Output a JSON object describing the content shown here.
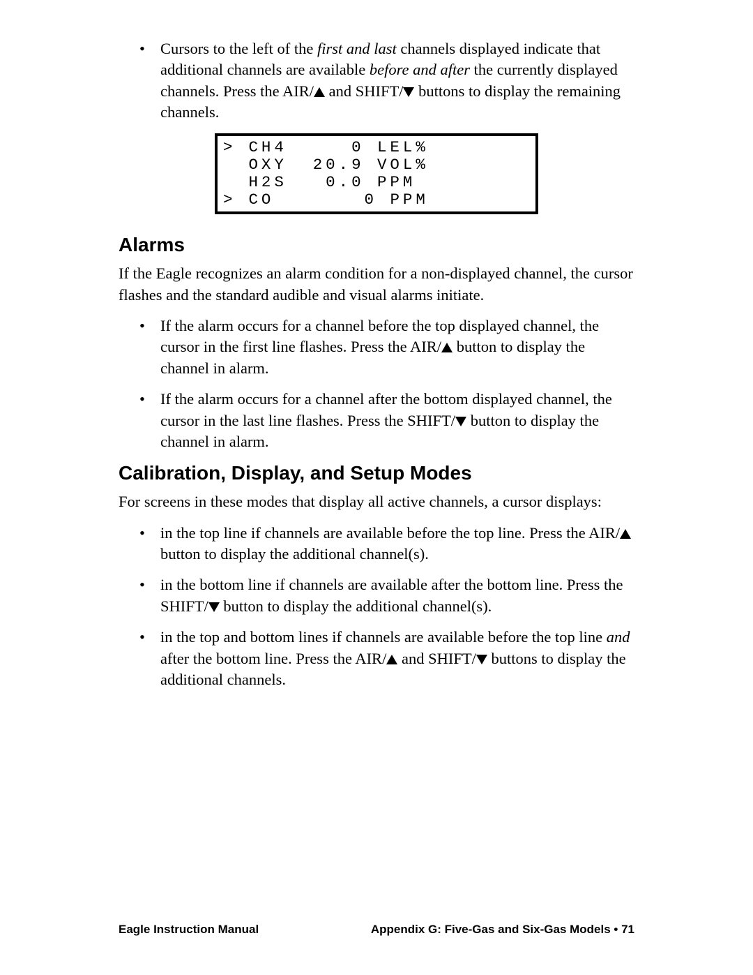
{
  "intro_bullet": {
    "pre1": "Cursors to the left of the ",
    "ital1": "first and last",
    "mid1": " channels displayed indicate that additional channels are available ",
    "ital2": "before and after",
    "mid2": " the currently displayed channels. Press the AIR/",
    "mid3": " and SHIFT/",
    "mid4": " buttons to display the remaining channels."
  },
  "display": {
    "rows": [
      {
        "cursor": ">",
        "gas": "CH4",
        "value": "   0",
        "unit": "LEL%"
      },
      {
        "cursor": " ",
        "gas": "OXY",
        "value": "20.9",
        "unit": "VOL%"
      },
      {
        "cursor": " ",
        "gas": "H2S",
        "value": " 0.0",
        "unit": "PPM"
      },
      {
        "cursor": ">",
        "gas": "CO ",
        "value": "   0",
        "unit": "PPM"
      }
    ]
  },
  "alarms": {
    "heading": "Alarms",
    "intro": "If the Eagle recognizes an alarm condition for a non-displayed channel, the cursor flashes and the standard audible and visual alarms initiate.",
    "b1a": "If the alarm occurs for a channel before the top displayed channel, the cursor in the first line flashes. Press the AIR/",
    "b1b": " button to display the channel in alarm.",
    "b2a": "If the alarm occurs for a channel after the bottom displayed channel, the cursor in the last line flashes. Press the SHIFT/",
    "b2b": " button to display the channel in alarm."
  },
  "calib": {
    "heading": "Calibration, Display, and Setup Modes",
    "intro": "For screens in these modes that display all active channels, a cursor displays:",
    "b1a": "in the top line if channels are available before the top line. Press the AIR/",
    "b1b": " button to display the additional channel(s).",
    "b2a": "in the bottom line if channels are available after the bottom line. Press the SHIFT/",
    "b2b": " button to display the additional channel(s).",
    "b3a": "in the top and bottom lines if channels are available before the top line ",
    "b3ital": "and",
    "b3b": " after the bottom line. Press the AIR/",
    "b3c": " and SHIFT/",
    "b3d": " buttons to display the additional channels."
  },
  "footer": {
    "left": "Eagle Instruction Manual",
    "right": "Appendix G: Five-Gas and Six-Gas Models • 71"
  }
}
